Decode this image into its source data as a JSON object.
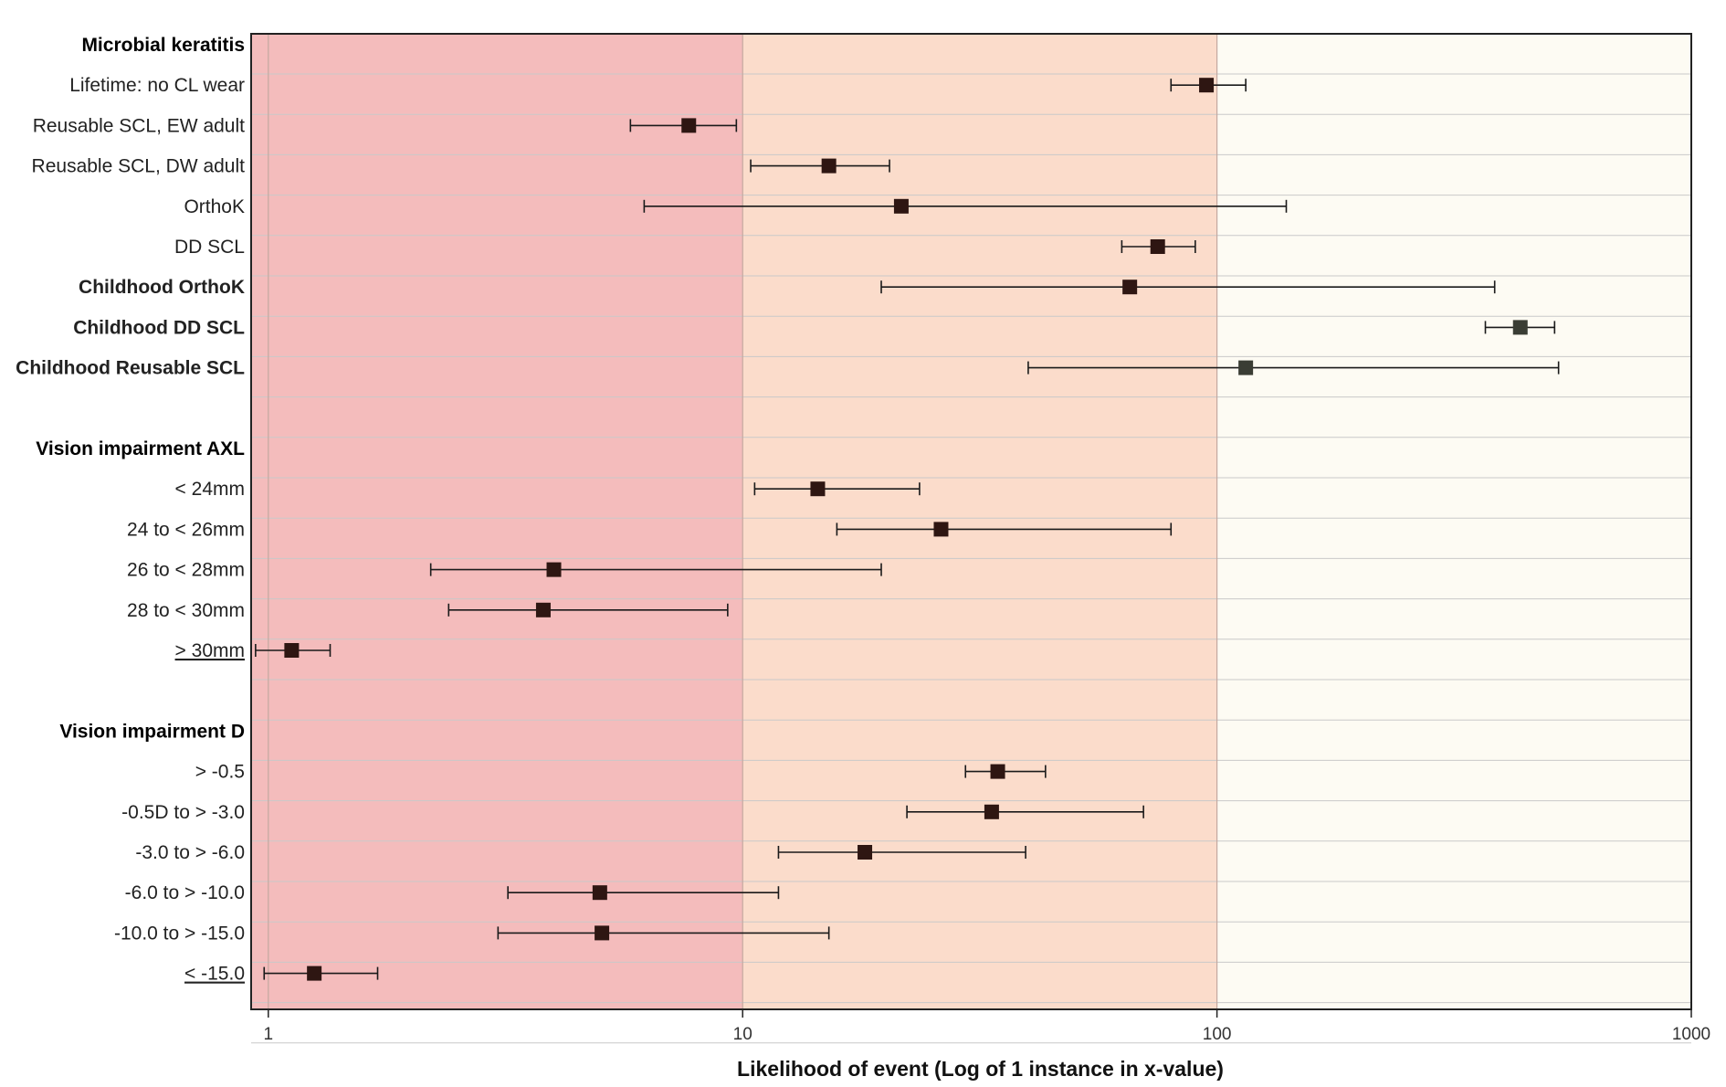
{
  "chart_data": {
    "type": "scatter",
    "subtype": "forest-plot-with-error-bars",
    "xscale": "log",
    "xlim": [
      0.92,
      1000
    ],
    "xticks": [
      1,
      10,
      100,
      1000
    ],
    "xtick_labels": [
      "1",
      "10",
      "100",
      "1000"
    ],
    "xlabel": "Likelihood of event (Log of 1 instance in x-value)",
    "ylabel": "",
    "title": "",
    "grid": true,
    "bands": [
      {
        "from": 0.92,
        "to": 10,
        "color": "#f4bcbc"
      },
      {
        "from": 10,
        "to": 100,
        "color": "#fbdccb"
      },
      {
        "from": 100,
        "to": 1000,
        "color": "#fdfbf3"
      }
    ],
    "colors": {
      "marker": "#2e1612",
      "marker_alt": "#3a3d34",
      "errorbar": "#1a1a1a",
      "gridline": "#c9c9c9",
      "highlight_label": "#c0181c",
      "header_label": "#000000",
      "label": "#222222"
    },
    "rows": [
      {
        "label": "Microbial keratitis",
        "kind": "header"
      },
      {
        "label": "Lifetime: no CL wear",
        "kind": "item",
        "value": 95,
        "low": 80,
        "high": 115
      },
      {
        "label": "Reusable SCL, EW adult",
        "kind": "item",
        "value": 7.7,
        "low": 5.8,
        "high": 9.7
      },
      {
        "label": "Reusable SCL, DW adult",
        "kind": "item",
        "value": 15.2,
        "low": 10.4,
        "high": 20.4
      },
      {
        "label": "OrthoK",
        "kind": "item",
        "value": 21.6,
        "low": 6.2,
        "high": 140
      },
      {
        "label": "DD SCL",
        "kind": "item",
        "value": 75,
        "low": 63,
        "high": 90
      },
      {
        "label": "Childhood OrthoK",
        "kind": "highlight",
        "value": 65.5,
        "low": 19.6,
        "high": 385
      },
      {
        "label": "Childhood DD SCL",
        "kind": "highlight",
        "value": 436,
        "low": 368,
        "high": 515,
        "alt": true
      },
      {
        "label": "Childhood Reusable SCL",
        "kind": "highlight",
        "value": 115,
        "low": 40,
        "high": 525,
        "alt": true
      },
      {
        "label": "",
        "kind": "spacer"
      },
      {
        "label": "Vision impairment AXL",
        "kind": "header"
      },
      {
        "label": "< 24mm",
        "kind": "item",
        "value": 14.4,
        "low": 10.6,
        "high": 23.6
      },
      {
        "label": "24 to < 26mm",
        "kind": "item",
        "value": 26.2,
        "low": 15.8,
        "high": 80
      },
      {
        "label": "26 to < 28mm",
        "kind": "item",
        "value": 4.0,
        "low": 2.2,
        "high": 19.6
      },
      {
        "label": "28 to < 30mm",
        "kind": "item",
        "value": 3.8,
        "low": 2.4,
        "high": 9.3
      },
      {
        "label": "> 30mm",
        "kind": "item",
        "underline": true,
        "value": 1.12,
        "low": 0.94,
        "high": 1.35
      },
      {
        "label": "",
        "kind": "spacer"
      },
      {
        "label": "Vision impairment D",
        "kind": "header"
      },
      {
        "label": "> -0.5",
        "kind": "item",
        "value": 34.5,
        "low": 29.5,
        "high": 43.5
      },
      {
        "label": "-0.5D to > -3.0",
        "kind": "item",
        "value": 33.5,
        "low": 22.2,
        "high": 70
      },
      {
        "label": "-3.0 to > -6.0",
        "kind": "item",
        "value": 18.1,
        "low": 11.9,
        "high": 39.5
      },
      {
        "label": "-6.0 to > -10.0",
        "kind": "item",
        "value": 5.0,
        "low": 3.2,
        "high": 11.9
      },
      {
        "label": "-10.0 to > -15.0",
        "kind": "item",
        "value": 5.05,
        "low": 3.05,
        "high": 15.2
      },
      {
        "label": "< -15.0",
        "kind": "item",
        "underline": true,
        "value": 1.25,
        "low": 0.98,
        "high": 1.7
      }
    ]
  }
}
